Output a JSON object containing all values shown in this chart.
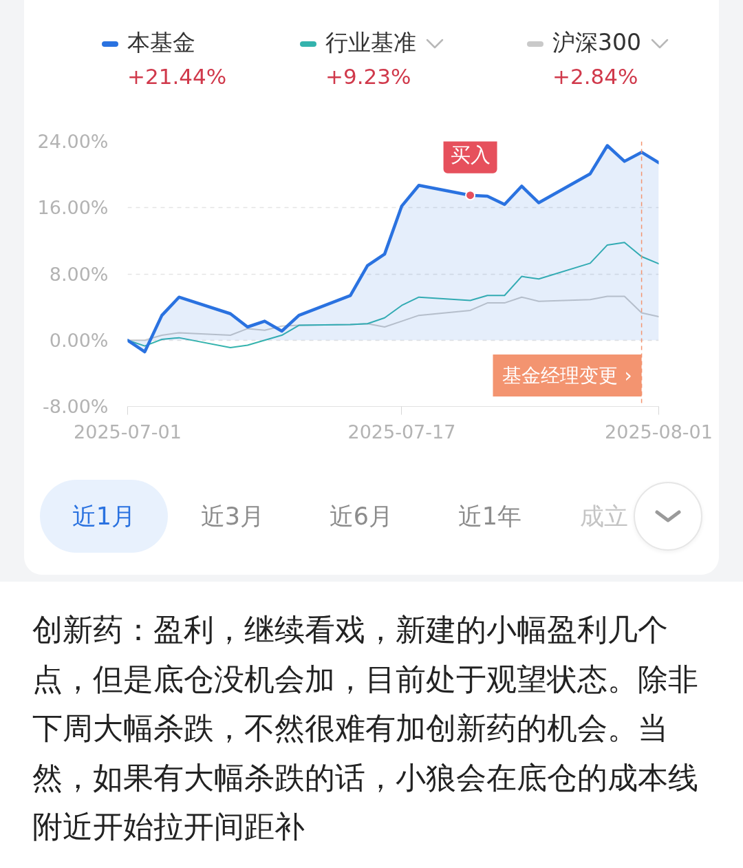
{
  "chart_data": {
    "type": "line",
    "x": [
      "2025-07-01",
      "2025-07-02",
      "2025-07-03",
      "2025-07-04",
      "2025-07-07",
      "2025-07-08",
      "2025-07-09",
      "2025-07-10",
      "2025-07-11",
      "2025-07-14",
      "2025-07-15",
      "2025-07-16",
      "2025-07-17",
      "2025-07-18",
      "2025-07-21",
      "2025-07-22",
      "2025-07-23",
      "2025-07-24",
      "2025-07-25",
      "2025-07-28",
      "2025-07-29",
      "2025-07-30",
      "2025-07-31",
      "2025-08-01"
    ],
    "xlim": [
      "2025-07-01",
      "2025-08-01"
    ],
    "xticks": [
      "2025-07-01",
      "2025-07-17",
      "2025-08-01"
    ],
    "ylim": [
      -8,
      24
    ],
    "yticks": [
      {
        "value": -8,
        "label": "-8.00%"
      },
      {
        "value": 0,
        "label": "0.00%"
      },
      {
        "value": 8,
        "label": "8.00%"
      },
      {
        "value": 16,
        "label": "16.00%"
      },
      {
        "value": 24,
        "label": "24.00%"
      }
    ],
    "series": [
      {
        "name": "本基金",
        "type": "area",
        "color": "#2a72e0",
        "values": [
          0.0,
          -1.4,
          3.0,
          5.2,
          3.2,
          1.6,
          2.3,
          1.1,
          3.0,
          5.4,
          9.0,
          10.4,
          16.2,
          18.7,
          17.5,
          17.4,
          16.4,
          18.6,
          16.6,
          20.1,
          23.5,
          21.6,
          22.7,
          21.44
        ]
      },
      {
        "name": "行业基准",
        "color": "#34b3ad",
        "values": [
          0.0,
          -0.7,
          0.1,
          0.3,
          -0.9,
          -0.6,
          0.0,
          0.6,
          1.8,
          1.9,
          2.0,
          2.7,
          4.2,
          5.2,
          4.8,
          5.4,
          5.4,
          7.7,
          7.4,
          9.3,
          11.5,
          11.8,
          10.1,
          9.23
        ]
      },
      {
        "name": "沪深300",
        "color": "#c9c9c9",
        "values": [
          0.0,
          0.0,
          0.6,
          0.9,
          0.6,
          1.4,
          1.2,
          1.7,
          1.8,
          1.9,
          2.0,
          1.6,
          2.3,
          3.0,
          3.6,
          4.5,
          4.5,
          5.2,
          4.7,
          4.9,
          5.3,
          5.3,
          3.3,
          2.84
        ]
      }
    ],
    "grid": "y",
    "legend": "top",
    "ref_lines": [
      {
        "axis": "x",
        "value": "2025-07-31",
        "label": "基金经理变更 ›",
        "color": "#f39470",
        "line_style": "dashed"
      }
    ],
    "annotations": [
      "+21.44%",
      "+9.23%",
      "+2.84%",
      {
        "text": "买入",
        "x": "2025-07-21",
        "y": 17.5
      },
      "近1月",
      "近3月",
      "近6月",
      "近1年",
      "成立",
      "创新药：盈利，继续看戏，新建的小幅盈利几个点，但是底仓没机会加，目前处于观望状态。除非下周大幅杀跌，不然很难有加创新药的机会。当然，如果有大幅杀跌的话，小狼会在底仓的成本线附近开始拉开间距补"
    ]
  }
}
